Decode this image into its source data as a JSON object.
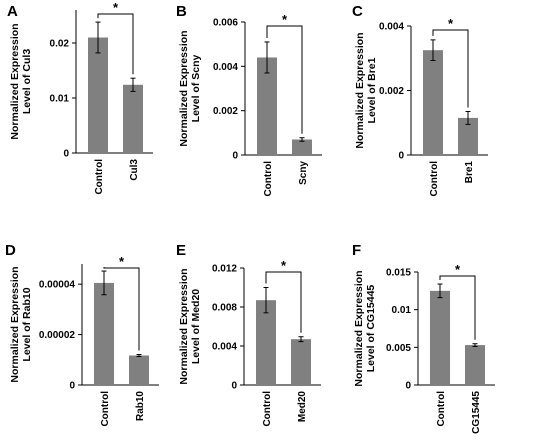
{
  "chart_data": [
    {
      "type": "bar",
      "panel": "A",
      "ylabel_lines": [
        "Normalized Expression",
        "Level of Cul3"
      ],
      "categories": [
        "Control",
        "Cul3"
      ],
      "values": [
        0.021,
        0.0124
      ],
      "errors": [
        0.0028,
        0.0012
      ],
      "yticks": [
        {
          "v": 0,
          "t": "0"
        },
        {
          "v": 0.01,
          "t": "0.01"
        },
        {
          "v": 0.02,
          "t": "0.02"
        }
      ],
      "ylim": [
        0,
        0.026
      ],
      "significance": "*",
      "bar_color": "#808080"
    },
    {
      "type": "bar",
      "panel": "B",
      "ylabel_lines": [
        "Normalized Expression",
        "Level of Scny"
      ],
      "categories": [
        "Control",
        "Scny"
      ],
      "values": [
        0.0044,
        0.0007
      ],
      "errors": [
        0.0007,
        8e-05
      ],
      "yticks": [
        {
          "v": 0,
          "t": "0"
        },
        {
          "v": 0.002,
          "t": "0.002"
        },
        {
          "v": 0.004,
          "t": "0.004"
        },
        {
          "v": 0.006,
          "t": "0.006"
        }
      ],
      "ylim": [
        0,
        0.006
      ],
      "significance": "*",
      "bar_color": "#808080"
    },
    {
      "type": "bar",
      "panel": "C",
      "ylabel_lines": [
        "Normalized Expression",
        "Level of Bre1"
      ],
      "categories": [
        "Control",
        "Bre1"
      ],
      "values": [
        0.00325,
        0.00115
      ],
      "errors": [
        0.00032,
        0.0002
      ],
      "yticks": [
        {
          "v": 0,
          "t": "0"
        },
        {
          "v": 0.002,
          "t": "0.002"
        },
        {
          "v": 0.004,
          "t": "0.004"
        }
      ],
      "ylim": [
        0,
        0.004
      ],
      "significance": "*",
      "bar_color": "#808080"
    },
    {
      "type": "bar",
      "panel": "D",
      "ylabel_lines": [
        "Normalized Expression",
        "Level of Rab10"
      ],
      "categories": [
        "Control",
        "Rab10"
      ],
      "values": [
        4.05e-05,
        1.17e-05
      ],
      "errors": [
        4.7e-06,
        4e-07
      ],
      "yticks": [
        {
          "v": 0,
          "t": "0"
        },
        {
          "v": 2e-05,
          "t": "0.00002"
        },
        {
          "v": 4e-05,
          "t": "0.00004"
        }
      ],
      "ylim": [
        0,
        4.8e-05
      ],
      "significance": "*",
      "bar_color": "#808080"
    },
    {
      "type": "bar",
      "panel": "E",
      "ylabel_lines": [
        "Normalized Expression",
        "Level of Med20"
      ],
      "categories": [
        "Control",
        "Med20"
      ],
      "values": [
        0.0087,
        0.0047
      ],
      "errors": [
        0.0013,
        0.00025
      ],
      "yticks": [
        {
          "v": 0,
          "t": "0"
        },
        {
          "v": 0.004,
          "t": "0.004"
        },
        {
          "v": 0.008,
          "t": "0.008"
        },
        {
          "v": 0.012,
          "t": "0.012"
        }
      ],
      "ylim": [
        0,
        0.012
      ],
      "significance": "*",
      "bar_color": "#808080"
    },
    {
      "type": "bar",
      "panel": "F",
      "ylabel_lines": [
        "Normalized Expression",
        "Level of CG15445"
      ],
      "categories": [
        "Control",
        "CG15445"
      ],
      "values": [
        0.0125,
        0.0053
      ],
      "errors": [
        0.0009,
        0.00018
      ],
      "yticks": [
        {
          "v": 0,
          "t": "0"
        },
        {
          "v": 0.005,
          "t": "0.005"
        },
        {
          "v": 0.01,
          "t": "0.01"
        },
        {
          "v": 0.015,
          "t": "0.015"
        }
      ],
      "ylim": [
        0,
        0.015
      ],
      "significance": "*",
      "bar_color": "#808080"
    }
  ]
}
